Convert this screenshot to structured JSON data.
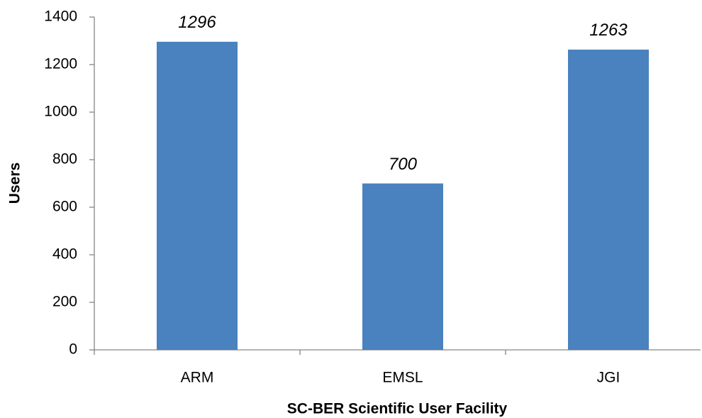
{
  "chart_data": {
    "type": "bar",
    "x_label": "SC-BER Scientific User Facility",
    "y_label": "Users",
    "categories": [
      "ARM",
      "EMSL",
      "JGI"
    ],
    "values": [
      1296,
      700,
      1263
    ],
    "color": "#4a81bf",
    "ylim": [
      0,
      1400
    ],
    "yticks": [
      0,
      200,
      400,
      600,
      800,
      1000,
      1200,
      1400
    ],
    "grid": false
  }
}
